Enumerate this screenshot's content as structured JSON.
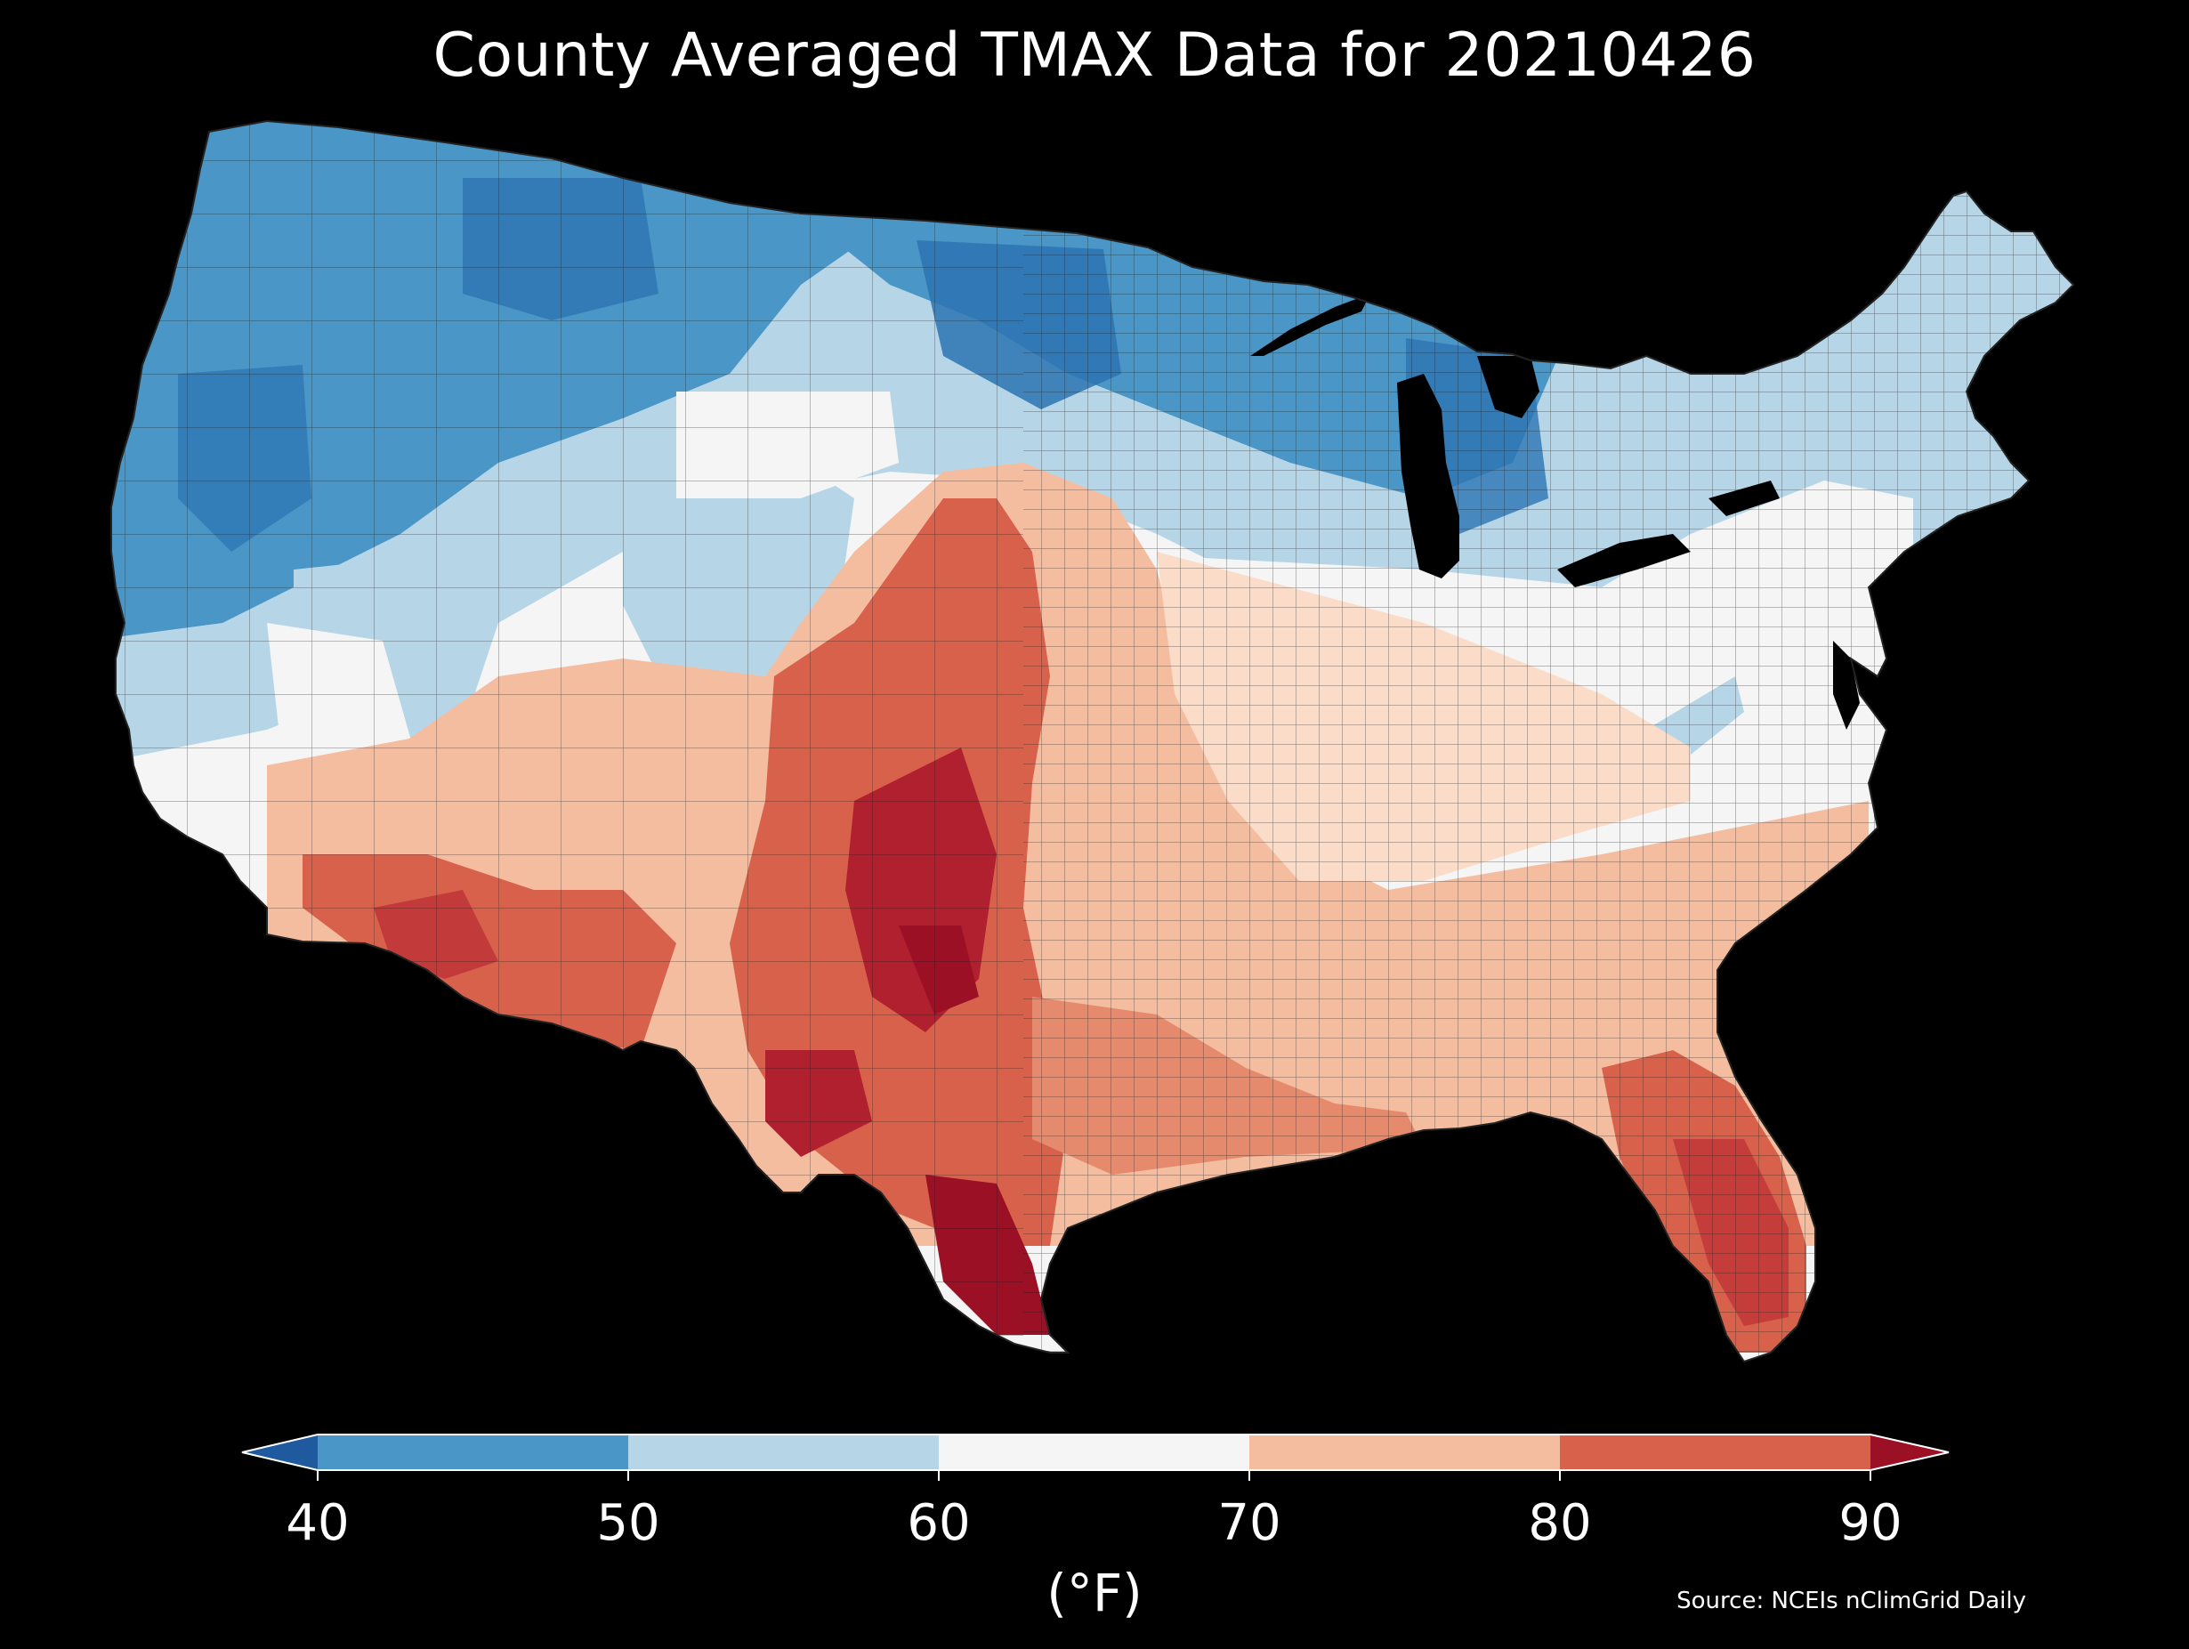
{
  "title": "County Averaged TMAX Data for 20210426",
  "source": "Source: NCEIs nClimGrid Daily",
  "colorbar": {
    "label": "(°F)",
    "ticks": [
      "40",
      "50",
      "60",
      "70",
      "80",
      "90"
    ],
    "extend": "both",
    "bins": [
      {
        "range": "<40",
        "color": "#1f5a9e"
      },
      {
        "range": "40-50",
        "color": "#4a96c6"
      },
      {
        "range": "50-60",
        "color": "#b6d6e8"
      },
      {
        "range": "60-70",
        "color": "#f5f5f5"
      },
      {
        "range": "70-80",
        "color": "#f5bda0"
      },
      {
        "range": "80-90",
        "color": "#d8614c"
      },
      {
        "range": ">90",
        "color": "#9b1025"
      }
    ]
  },
  "map": {
    "region": "Contiguous United States",
    "background": "#000000",
    "water_color": "#000000",
    "county_border_color": "#111111"
  }
}
